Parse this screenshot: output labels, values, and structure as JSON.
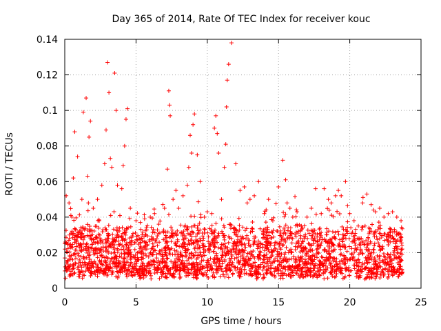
{
  "chart_data": {
    "type": "scatter",
    "title": "Day 365 of 2014, Rate Of TEC Index for receiver kouc",
    "xlabel": "GPS time / hours",
    "ylabel": "ROTI / TECUs",
    "xlim": [
      0,
      25
    ],
    "ylim": [
      0,
      0.14
    ],
    "xticks": [
      0,
      5,
      10,
      15,
      20,
      25
    ],
    "xtick_labels": [
      "0",
      "5",
      "10",
      "15",
      "20",
      "25"
    ],
    "yticks": [
      0,
      0.02,
      0.04,
      0.06,
      0.08,
      0.1,
      0.12,
      0.14
    ],
    "ytick_labels": [
      "0",
      "0.02",
      "0.04",
      "0.06",
      "0.08",
      "0.1",
      "0.12",
      "0.14"
    ],
    "grid": true,
    "marker": "+",
    "color": "#ff0000",
    "x_coverage": [
      0,
      23.7
    ],
    "bulk_band": [
      0.005,
      0.035
    ],
    "series": [
      {
        "x": [
          0.1,
          0.3,
          0.5,
          0.6,
          0.7,
          0.9,
          1.2,
          1.3,
          1.5,
          1.6,
          1.7,
          1.8,
          2.0,
          2.3,
          2.6,
          2.8,
          2.9,
          3.0,
          3.1,
          3.2,
          3.3,
          3.5,
          3.6,
          3.7,
          4.0,
          4.1,
          4.2,
          4.3,
          4.4,
          4.6,
          5.0,
          5.3,
          5.6,
          6.0,
          6.3,
          6.6,
          7.0,
          7.2,
          7.3,
          7.35,
          7.4,
          7.6,
          7.8,
          8.0,
          8.3,
          8.6,
          8.7,
          8.8,
          8.9,
          9.0,
          9.1,
          9.3,
          9.5,
          9.8,
          10.0,
          10.5,
          10.6,
          10.7,
          10.8,
          11.0,
          11.2,
          11.3,
          11.35,
          11.4,
          11.5,
          11.7,
          12.0,
          12.3,
          12.6,
          12.8,
          13.0,
          13.3,
          13.6,
          14.0,
          14.3,
          14.6,
          15.0,
          15.3,
          15.5,
          15.6,
          15.8,
          16.0,
          16.3,
          16.6,
          17.0,
          17.3,
          17.6,
          18.0,
          18.2,
          18.5,
          18.7,
          19.0,
          19.2,
          19.4,
          19.7,
          20.0,
          20.3,
          20.6,
          20.9,
          21.2,
          21.5,
          21.8,
          22.1,
          22.4,
          22.7,
          23.0,
          23.3,
          23.6
        ],
        "y": [
          0.052,
          0.048,
          0.04,
          0.062,
          0.088,
          0.074,
          0.05,
          0.099,
          0.107,
          0.063,
          0.085,
          0.094,
          0.045,
          0.05,
          0.058,
          0.07,
          0.089,
          0.127,
          0.11,
          0.073,
          0.068,
          0.121,
          0.1,
          0.058,
          0.056,
          0.069,
          0.08,
          0.095,
          0.101,
          0.045,
          0.038,
          0.037,
          0.039,
          0.04,
          0.042,
          0.036,
          0.045,
          0.067,
          0.111,
          0.103,
          0.097,
          0.05,
          0.055,
          0.045,
          0.052,
          0.058,
          0.068,
          0.086,
          0.076,
          0.092,
          0.098,
          0.075,
          0.06,
          0.04,
          0.043,
          0.09,
          0.097,
          0.087,
          0.076,
          0.05,
          0.068,
          0.081,
          0.102,
          0.117,
          0.126,
          0.138,
          0.07,
          0.055,
          0.057,
          0.048,
          0.05,
          0.052,
          0.06,
          0.042,
          0.05,
          0.038,
          0.057,
          0.072,
          0.061,
          0.048,
          0.045,
          0.04,
          0.043,
          0.035,
          0.04,
          0.045,
          0.056,
          0.042,
          0.056,
          0.05,
          0.048,
          0.052,
          0.055,
          0.052,
          0.06,
          0.042,
          0.038,
          0.035,
          0.048,
          0.053,
          0.047,
          0.043,
          0.045,
          0.04,
          0.042,
          0.043,
          0.04,
          0.038
        ]
      }
    ]
  }
}
